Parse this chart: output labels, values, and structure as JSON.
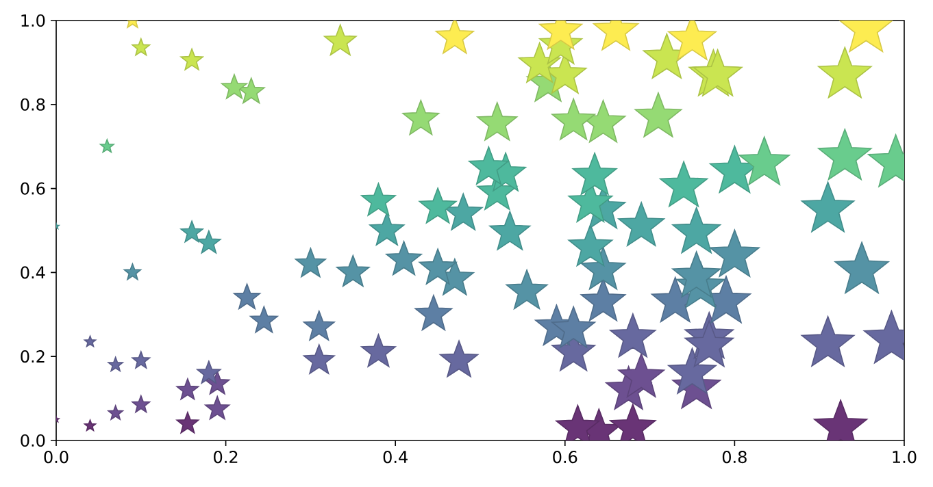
{
  "chart_data": {
    "type": "bubble",
    "marker": "star",
    "xlim": [
      0,
      1
    ],
    "ylim": [
      0,
      1
    ],
    "xticks": [
      {
        "value": 0,
        "label": "0.0"
      },
      {
        "value": 0.2,
        "label": "0.2"
      },
      {
        "value": 0.4,
        "label": "0.4"
      },
      {
        "value": 0.6,
        "label": "0.6"
      },
      {
        "value": 0.8,
        "label": "0.8"
      },
      {
        "value": 1,
        "label": "1.0"
      }
    ],
    "yticks": [
      {
        "value": 0,
        "label": "0.0"
      },
      {
        "value": 0.2,
        "label": "0.2"
      },
      {
        "value": 0.4,
        "label": "0.4"
      },
      {
        "value": 0.6,
        "label": "0.6"
      },
      {
        "value": 0.8,
        "label": "0.8"
      },
      {
        "value": 1,
        "label": "1.0"
      }
    ],
    "series": [
      {
        "color": "#693476",
        "x": [
          0.64,
          0.615,
          0.68,
          0.925,
          0.04,
          0.155,
          0.0
        ],
        "values": [
          0.02,
          0.03,
          0.03,
          0.03,
          0.035,
          0.04,
          0.05
        ],
        "sizes": [
          0.64,
          0.615,
          0.68,
          0.925,
          0.04,
          0.155,
          0.01
        ]
      },
      {
        "color": "#6d5091",
        "x": [
          0.07,
          0.1,
          0.19,
          0.155,
          0.19,
          0.675,
          0.755,
          0.69
        ],
        "values": [
          0.065,
          0.085,
          0.075,
          0.12,
          0.135,
          0.12,
          0.125,
          0.15
        ],
        "sizes": [
          0.07,
          0.1,
          0.19,
          0.155,
          0.19,
          0.675,
          0.755,
          0.69
        ]
      },
      {
        "color": "#67699f",
        "x": [
          0.18,
          0.07,
          0.1,
          0.31,
          0.475,
          0.38,
          0.61,
          0.75,
          0.04,
          0.91,
          0.985,
          0.68,
          0.77,
          0.77
        ],
        "values": [
          0.16,
          0.18,
          0.19,
          0.19,
          0.19,
          0.21,
          0.21,
          0.16,
          0.235,
          0.23,
          0.24,
          0.245,
          0.245,
          0.225
        ],
        "sizes": [
          0.18,
          0.07,
          0.1,
          0.31,
          0.475,
          0.38,
          0.61,
          0.75,
          0.04,
          0.91,
          1,
          0.68,
          0.77,
          0.77
        ]
      },
      {
        "color": "#5d7fa4",
        "x": [
          0.31,
          0.245,
          0.445,
          0.59,
          0.61,
          0.645,
          0.73,
          0.79,
          0.225
        ],
        "values": [
          0.27,
          0.285,
          0.3,
          0.27,
          0.265,
          0.33,
          0.33,
          0.33,
          0.34
        ],
        "sizes": [
          0.31,
          0.245,
          0.445,
          0.59,
          0.61,
          0.645,
          0.73,
          0.79,
          0.225
        ]
      },
      {
        "color": "#5593a5",
        "x": [
          0.555,
          0.76,
          0.47,
          0.755,
          0.35,
          0.09,
          0.645,
          0.95,
          0.45,
          0.3,
          0.41,
          0.8
        ],
        "values": [
          0.355,
          0.365,
          0.385,
          0.39,
          0.4,
          0.4,
          0.405,
          0.405,
          0.41,
          0.42,
          0.43,
          0.44
        ],
        "sizes": [
          0.555,
          0.76,
          0.47,
          0.755,
          0.35,
          0.09,
          0.645,
          0.95,
          0.45,
          0.3,
          0.41,
          0.8
        ]
      },
      {
        "color": "#4da7a3",
        "x": [
          0.63,
          0.18,
          0.16,
          0.535,
          0.755,
          0.39,
          0.69,
          0.0,
          0.48,
          0.645,
          0.91
        ],
        "values": [
          0.46,
          0.47,
          0.495,
          0.495,
          0.495,
          0.5,
          0.51,
          0.51,
          0.54,
          0.55,
          0.55
        ],
        "sizes": [
          0.63,
          0.18,
          0.16,
          0.535,
          0.755,
          0.39,
          0.69,
          0.01,
          0.48,
          0.645,
          0.91
        ]
      },
      {
        "color": "#4eb99d",
        "x": [
          0.45,
          0.63,
          0.38,
          0.52,
          0.74,
          0.635,
          0.53,
          0.8,
          0.51
        ],
        "values": [
          0.555,
          0.565,
          0.57,
          0.59,
          0.605,
          0.63,
          0.635,
          0.64,
          0.65
        ],
        "sizes": [
          0.45,
          0.63,
          0.38,
          0.52,
          0.74,
          0.635,
          0.53,
          0.8,
          0.51
        ]
      },
      {
        "color": "#69cc8d",
        "x": [
          0.835,
          0.99,
          0.93,
          0.06
        ],
        "values": [
          0.66,
          0.66,
          0.675,
          0.7
        ],
        "sizes": [
          0.835,
          0.99,
          0.93,
          0.06
        ]
      },
      {
        "color": "#95da74",
        "x": [
          0.52,
          0.645,
          0.61,
          0.43,
          0.71,
          0.23,
          0.21,
          0.58
        ],
        "values": [
          0.755,
          0.755,
          0.76,
          0.765,
          0.77,
          0.83,
          0.84,
          0.85
        ],
        "sizes": [
          0.52,
          0.645,
          0.61,
          0.43,
          0.71,
          0.23,
          0.21,
          0.58
        ]
      },
      {
        "color": "#cae551",
        "x": [
          0.6,
          0.775,
          0.78,
          0.93,
          0.57,
          0.16,
          0.72,
          0.1,
          0.595,
          0.335
        ],
        "values": [
          0.87,
          0.87,
          0.87,
          0.87,
          0.895,
          0.905,
          0.91,
          0.935,
          0.94,
          0.95
        ],
        "sizes": [
          0.6,
          0.775,
          0.78,
          0.93,
          0.57,
          0.16,
          0.72,
          0.1,
          0.595,
          0.335
        ]
      },
      {
        "color": "#fdec51",
        "x": [
          0.75,
          0.47,
          0.595,
          0.66,
          0.955,
          0.09
        ],
        "values": [
          0.955,
          0.96,
          0.975,
          0.975,
          0.98,
          1.0
        ],
        "sizes": [
          0.75,
          0.47,
          0.595,
          0.66,
          0.955,
          0.09
        ]
      }
    ]
  }
}
